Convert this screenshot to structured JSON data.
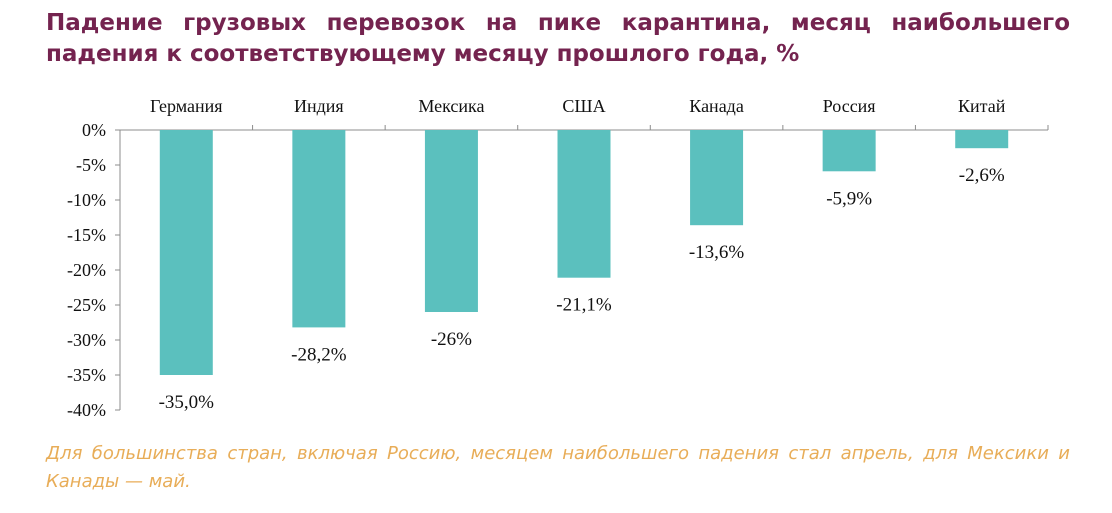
{
  "title_line1": "Падение грузовых перевозок на пике карантина, месяц наибольшего",
  "title_line2": "падения к соответствующему месяцу прошлого года, %",
  "note": "Для большинства стран, включая Россию, месяцем наибольшего падения стал апрель, для Мексики и Канады — май.",
  "colors": {
    "bar": "#5bc0be",
    "title": "#74234f",
    "note": "#e8ad58"
  },
  "chart_data": {
    "type": "bar",
    "title": "Падение грузовых перевозок на пике карантина, месяц наибольшего падения к соответствующему месяцу прошлого года, %",
    "categories": [
      "Германия",
      "Индия",
      "Мексика",
      "США",
      "Канада",
      "Россия",
      "Китай"
    ],
    "values": [
      -35.0,
      -28.2,
      -26.0,
      -21.1,
      -13.6,
      -5.9,
      -2.6
    ],
    "data_labels": [
      "-35,0%",
      "-28,2%",
      "-26%",
      "-21,1%",
      "-13,6%",
      "-5,9%",
      "-2,6%"
    ],
    "yticks": [
      "0%",
      "-5%",
      "-10%",
      "-15%",
      "-20%",
      "-25%",
      "-30%",
      "-35%",
      "-40%"
    ],
    "ylim": [
      -40,
      0
    ],
    "xlabel": "",
    "ylabel": "",
    "grid": false,
    "legend": "none",
    "category_axis_position": "top"
  }
}
